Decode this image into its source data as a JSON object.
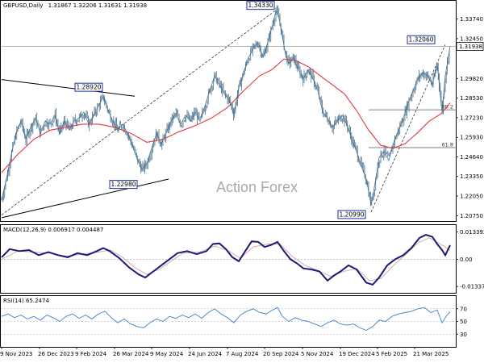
{
  "chart_data": [
    {
      "type": "candlestick",
      "symbol_label": "GBPUSD,Daily",
      "ohlc_label": "1.31867 1.32206 1.31631 1.31938",
      "current_price": "1.31938",
      "watermark": "Action Forex",
      "yticks": [
        "1.33740",
        "1.32450",
        "1.29820",
        "1.28530",
        "1.27230",
        "1.25930",
        "1.24640",
        "1.23350",
        "1.22050",
        "1.20750"
      ],
      "xticks": [
        "9 Nov 2023",
        "26 Dec 2023",
        "9 Feb 2024",
        "26 Mar 2024",
        "9 May 2024",
        "24 Jun 2024",
        "7 Aug 2024",
        "20 Sep 2024",
        "5 Nov 2024",
        "19 Dec 2024",
        "5 Feb 2025",
        "21 Mar 2025"
      ],
      "annotations": [
        {
          "label": "1.34330",
          "price": 1.3433
        },
        {
          "label": "1.32060",
          "price": 1.3206
        },
        {
          "label": "1.28920",
          "price": 1.2892
        },
        {
          "label": "1.22980",
          "price": 1.2298
        },
        {
          "label": "1.20990",
          "price": 1.2099
        }
      ],
      "fib_levels": [
        {
          "label": "38.2",
          "price": 1.2775
        },
        {
          "label": "61.8",
          "price": 1.2525
        }
      ],
      "ylim": [
        1.204,
        1.3495
      ],
      "overlay": "moving average (red)",
      "close_path": [
        [
          0,
          1.218
        ],
        [
          6,
          1.232
        ],
        [
          12,
          1.248
        ],
        [
          18,
          1.262
        ],
        [
          24,
          1.27
        ],
        [
          30,
          1.258
        ],
        [
          36,
          1.266
        ],
        [
          42,
          1.272
        ],
        [
          48,
          1.262
        ],
        [
          54,
          1.27
        ],
        [
          60,
          1.268
        ],
        [
          66,
          1.274
        ],
        [
          72,
          1.262
        ],
        [
          78,
          1.27
        ],
        [
          84,
          1.264
        ],
        [
          90,
          1.27
        ],
        [
          96,
          1.272
        ],
        [
          102,
          1.276
        ],
        [
          108,
          1.268
        ],
        [
          114,
          1.274
        ],
        [
          120,
          1.28
        ],
        [
          126,
          1.286
        ],
        [
          132,
          1.277
        ],
        [
          138,
          1.27
        ],
        [
          144,
          1.264
        ],
        [
          150,
          1.268
        ],
        [
          156,
          1.262
        ],
        [
          162,
          1.254
        ],
        [
          168,
          1.245
        ],
        [
          174,
          1.238
        ],
        [
          180,
          1.242
        ],
        [
          186,
          1.252
        ],
        [
          192,
          1.262
        ],
        [
          198,
          1.255
        ],
        [
          204,
          1.262
        ],
        [
          210,
          1.27
        ],
        [
          216,
          1.275
        ],
        [
          222,
          1.268
        ],
        [
          228,
          1.274
        ],
        [
          234,
          1.27
        ],
        [
          240,
          1.276
        ],
        [
          246,
          1.27
        ],
        [
          252,
          1.28
        ],
        [
          258,
          1.29
        ],
        [
          264,
          1.3
        ],
        [
          270,
          1.294
        ],
        [
          276,
          1.288
        ],
        [
          282,
          1.284
        ],
        [
          288,
          1.275
        ],
        [
          294,
          1.292
        ],
        [
          300,
          1.302
        ],
        [
          306,
          1.312
        ],
        [
          312,
          1.318
        ],
        [
          318,
          1.322
        ],
        [
          324,
          1.312
        ],
        [
          330,
          1.322
        ],
        [
          336,
          1.334
        ],
        [
          340,
          1.343
        ],
        [
          344,
          1.338
        ],
        [
          348,
          1.326
        ],
        [
          352,
          1.314
        ],
        [
          356,
          1.308
        ],
        [
          362,
          1.312
        ],
        [
          368,
          1.304
        ],
        [
          374,
          1.298
        ],
        [
          380,
          1.304
        ],
        [
          386,
          1.298
        ],
        [
          392,
          1.29
        ],
        [
          398,
          1.276
        ],
        [
          404,
          1.272
        ],
        [
          410,
          1.266
        ],
        [
          416,
          1.27
        ],
        [
          422,
          1.274
        ],
        [
          428,
          1.268
        ],
        [
          434,
          1.258
        ],
        [
          440,
          1.25
        ],
        [
          446,
          1.24
        ],
        [
          452,
          1.232
        ],
        [
          458,
          1.215
        ],
        [
          462,
          1.226
        ],
        [
          468,
          1.246
        ],
        [
          474,
          1.25
        ],
        [
          480,
          1.244
        ],
        [
          486,
          1.256
        ],
        [
          492,
          1.264
        ],
        [
          498,
          1.272
        ],
        [
          504,
          1.282
        ],
        [
          510,
          1.29
        ],
        [
          516,
          1.298
        ],
        [
          522,
          1.302
        ],
        [
          528,
          1.3
        ],
        [
          534,
          1.294
        ],
        [
          540,
          1.308
        ],
        [
          546,
          1.276
        ],
        [
          550,
          1.3
        ],
        [
          556,
          1.3194
        ]
      ],
      "ma_path": [
        [
          0,
          1.236
        ],
        [
          20,
          1.248
        ],
        [
          40,
          1.258
        ],
        [
          60,
          1.264
        ],
        [
          80,
          1.266
        ],
        [
          100,
          1.268
        ],
        [
          120,
          1.268
        ],
        [
          140,
          1.266
        ],
        [
          160,
          1.262
        ],
        [
          180,
          1.256
        ],
        [
          200,
          1.258
        ],
        [
          220,
          1.263
        ],
        [
          240,
          1.267
        ],
        [
          260,
          1.272
        ],
        [
          280,
          1.279
        ],
        [
          300,
          1.29
        ],
        [
          320,
          1.3
        ],
        [
          335,
          1.304
        ],
        [
          350,
          1.311
        ],
        [
          365,
          1.31
        ],
        [
          380,
          1.306
        ],
        [
          395,
          1.3
        ],
        [
          410,
          1.294
        ],
        [
          425,
          1.288
        ],
        [
          440,
          1.277
        ],
        [
          455,
          1.264
        ],
        [
          470,
          1.254
        ],
        [
          485,
          1.252
        ],
        [
          500,
          1.255
        ],
        [
          515,
          1.262
        ],
        [
          530,
          1.27
        ],
        [
          545,
          1.275
        ],
        [
          556,
          1.282
        ]
      ]
    },
    {
      "type": "line",
      "label": "MACD(12,26,9) 0.006917 0.004487",
      "yticks": [
        "0.013392",
        "0.00",
        "-0.013378"
      ],
      "ylim": [
        -0.0165,
        0.0168
      ],
      "macd_path": [
        [
          0,
          0.001
        ],
        [
          10,
          0.005
        ],
        [
          22,
          0.004
        ],
        [
          34,
          0.0045
        ],
        [
          46,
          0.002
        ],
        [
          58,
          0.0035
        ],
        [
          70,
          0.002
        ],
        [
          82,
          0.001
        ],
        [
          94,
          0.003
        ],
        [
          106,
          0.002
        ],
        [
          118,
          0.004
        ],
        [
          126,
          0.0055
        ],
        [
          134,
          0.004
        ],
        [
          146,
          0.0005
        ],
        [
          158,
          -0.004
        ],
        [
          170,
          -0.0075
        ],
        [
          178,
          -0.009
        ],
        [
          188,
          -0.006
        ],
        [
          198,
          -0.003
        ],
        [
          208,
          0.0
        ],
        [
          218,
          0.003
        ],
        [
          230,
          0.004
        ],
        [
          242,
          0.0025
        ],
        [
          254,
          0.004
        ],
        [
          262,
          0.0075
        ],
        [
          270,
          0.0078
        ],
        [
          278,
          0.005
        ],
        [
          286,
          0.001
        ],
        [
          294,
          -0.001
        ],
        [
          302,
          0.004
        ],
        [
          310,
          0.0088
        ],
        [
          318,
          0.0085
        ],
        [
          326,
          0.006
        ],
        [
          334,
          0.007
        ],
        [
          342,
          0.0085
        ],
        [
          350,
          0.004
        ],
        [
          358,
          0.0
        ],
        [
          366,
          -0.002
        ],
        [
          374,
          -0.0045
        ],
        [
          384,
          -0.005
        ],
        [
          394,
          -0.006
        ],
        [
          404,
          -0.0105
        ],
        [
          412,
          -0.008
        ],
        [
          420,
          -0.006
        ],
        [
          430,
          -0.003
        ],
        [
          440,
          -0.005
        ],
        [
          452,
          -0.0115
        ],
        [
          460,
          -0.0125
        ],
        [
          468,
          -0.009
        ],
        [
          478,
          -0.003
        ],
        [
          488,
          0.0
        ],
        [
          498,
          0.002
        ],
        [
          508,
          0.0055
        ],
        [
          518,
          0.0105
        ],
        [
          526,
          0.012
        ],
        [
          534,
          0.011
        ],
        [
          540,
          0.0075
        ],
        [
          546,
          0.0045
        ],
        [
          550,
          0.002
        ],
        [
          556,
          0.0069
        ]
      ],
      "signal_path": [
        [
          0,
          0.0
        ],
        [
          20,
          0.004
        ],
        [
          40,
          0.0035
        ],
        [
          60,
          0.003
        ],
        [
          80,
          0.0015
        ],
        [
          100,
          0.0025
        ],
        [
          120,
          0.0035
        ],
        [
          135,
          0.0045
        ],
        [
          150,
          0.001
        ],
        [
          165,
          -0.004
        ],
        [
          180,
          -0.0075
        ],
        [
          195,
          -0.005
        ],
        [
          210,
          -0.001
        ],
        [
          225,
          0.003
        ],
        [
          245,
          0.0035
        ],
        [
          265,
          0.0065
        ],
        [
          282,
          0.004
        ],
        [
          296,
          0.0005
        ],
        [
          312,
          0.006
        ],
        [
          330,
          0.0075
        ],
        [
          345,
          0.0075
        ],
        [
          360,
          0.0015
        ],
        [
          376,
          -0.003
        ],
        [
          392,
          -0.0055
        ],
        [
          408,
          -0.0085
        ],
        [
          424,
          -0.006
        ],
        [
          440,
          -0.0045
        ],
        [
          456,
          -0.0105
        ],
        [
          470,
          -0.0095
        ],
        [
          486,
          -0.003
        ],
        [
          500,
          0.002
        ],
        [
          516,
          0.008
        ],
        [
          530,
          0.0105
        ],
        [
          544,
          0.0075
        ],
        [
          556,
          0.0045
        ]
      ]
    },
    {
      "type": "line",
      "label": "RSI(14) 65.2474",
      "yticks": [
        "70",
        "50",
        "30"
      ],
      "ylim": [
        10,
        90
      ],
      "rsi_path": [
        [
          0,
          58
        ],
        [
          8,
          62
        ],
        [
          16,
          56
        ],
        [
          24,
          60
        ],
        [
          32,
          54
        ],
        [
          40,
          58
        ],
        [
          48,
          52
        ],
        [
          56,
          60
        ],
        [
          64,
          56
        ],
        [
          72,
          50
        ],
        [
          80,
          58
        ],
        [
          88,
          62
        ],
        [
          96,
          55
        ],
        [
          104,
          60
        ],
        [
          112,
          54
        ],
        [
          120,
          62
        ],
        [
          128,
          66
        ],
        [
          136,
          56
        ],
        [
          144,
          48
        ],
        [
          152,
          54
        ],
        [
          160,
          46
        ],
        [
          168,
          42
        ],
        [
          176,
          40
        ],
        [
          184,
          48
        ],
        [
          192,
          54
        ],
        [
          200,
          50
        ],
        [
          208,
          58
        ],
        [
          216,
          55
        ],
        [
          224,
          60
        ],
        [
          232,
          56
        ],
        [
          240,
          62
        ],
        [
          248,
          55
        ],
        [
          256,
          64
        ],
        [
          264,
          70
        ],
        [
          272,
          62
        ],
        [
          280,
          56
        ],
        [
          288,
          48
        ],
        [
          296,
          60
        ],
        [
          304,
          66
        ],
        [
          312,
          70
        ],
        [
          320,
          64
        ],
        [
          328,
          62
        ],
        [
          336,
          68
        ],
        [
          342,
          72
        ],
        [
          348,
          58
        ],
        [
          356,
          50
        ],
        [
          364,
          56
        ],
        [
          372,
          52
        ],
        [
          380,
          50
        ],
        [
          388,
          46
        ],
        [
          396,
          42
        ],
        [
          404,
          48
        ],
        [
          412,
          52
        ],
        [
          420,
          46
        ],
        [
          428,
          44
        ],
        [
          436,
          46
        ],
        [
          444,
          40
        ],
        [
          452,
          36
        ],
        [
          460,
          42
        ],
        [
          468,
          52
        ],
        [
          476,
          50
        ],
        [
          484,
          58
        ],
        [
          492,
          62
        ],
        [
          500,
          64
        ],
        [
          508,
          66
        ],
        [
          516,
          70
        ],
        [
          524,
          72
        ],
        [
          532,
          64
        ],
        [
          540,
          68
        ],
        [
          546,
          48
        ],
        [
          552,
          60
        ],
        [
          556,
          65.25
        ]
      ]
    }
  ]
}
